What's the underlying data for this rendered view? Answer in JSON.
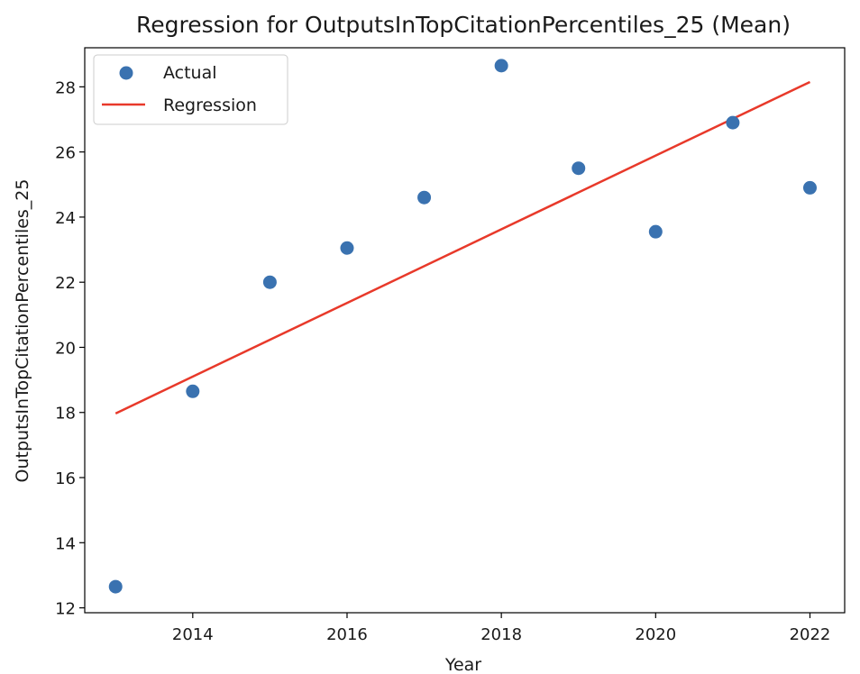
{
  "chart_data": {
    "type": "scatter",
    "title": "Regression for OutputsInTopCitationPercentiles_25 (Mean)",
    "xlabel": "Year",
    "ylabel": "OutputsInTopCitationPercentiles_25",
    "xlim": [
      2012.6,
      2022.45
    ],
    "ylim": [
      11.85,
      29.2
    ],
    "xticks": [
      2014,
      2016,
      2018,
      2020,
      2022
    ],
    "yticks": [
      12,
      14,
      16,
      18,
      20,
      22,
      24,
      26,
      28
    ],
    "grid": false,
    "legend_position": "top-left",
    "series": [
      {
        "name": "Actual",
        "kind": "scatter",
        "color": "#3a72b0",
        "x": [
          2013,
          2014,
          2015,
          2016,
          2017,
          2018,
          2019,
          2020,
          2021,
          2022
        ],
        "y": [
          12.65,
          18.65,
          22.0,
          23.05,
          24.6,
          28.65,
          25.5,
          23.55,
          26.9,
          24.9
        ]
      },
      {
        "name": "Regression",
        "kind": "line",
        "color": "#e8392a",
        "x": [
          2013,
          2022
        ],
        "y": [
          17.97,
          28.15
        ]
      }
    ]
  }
}
